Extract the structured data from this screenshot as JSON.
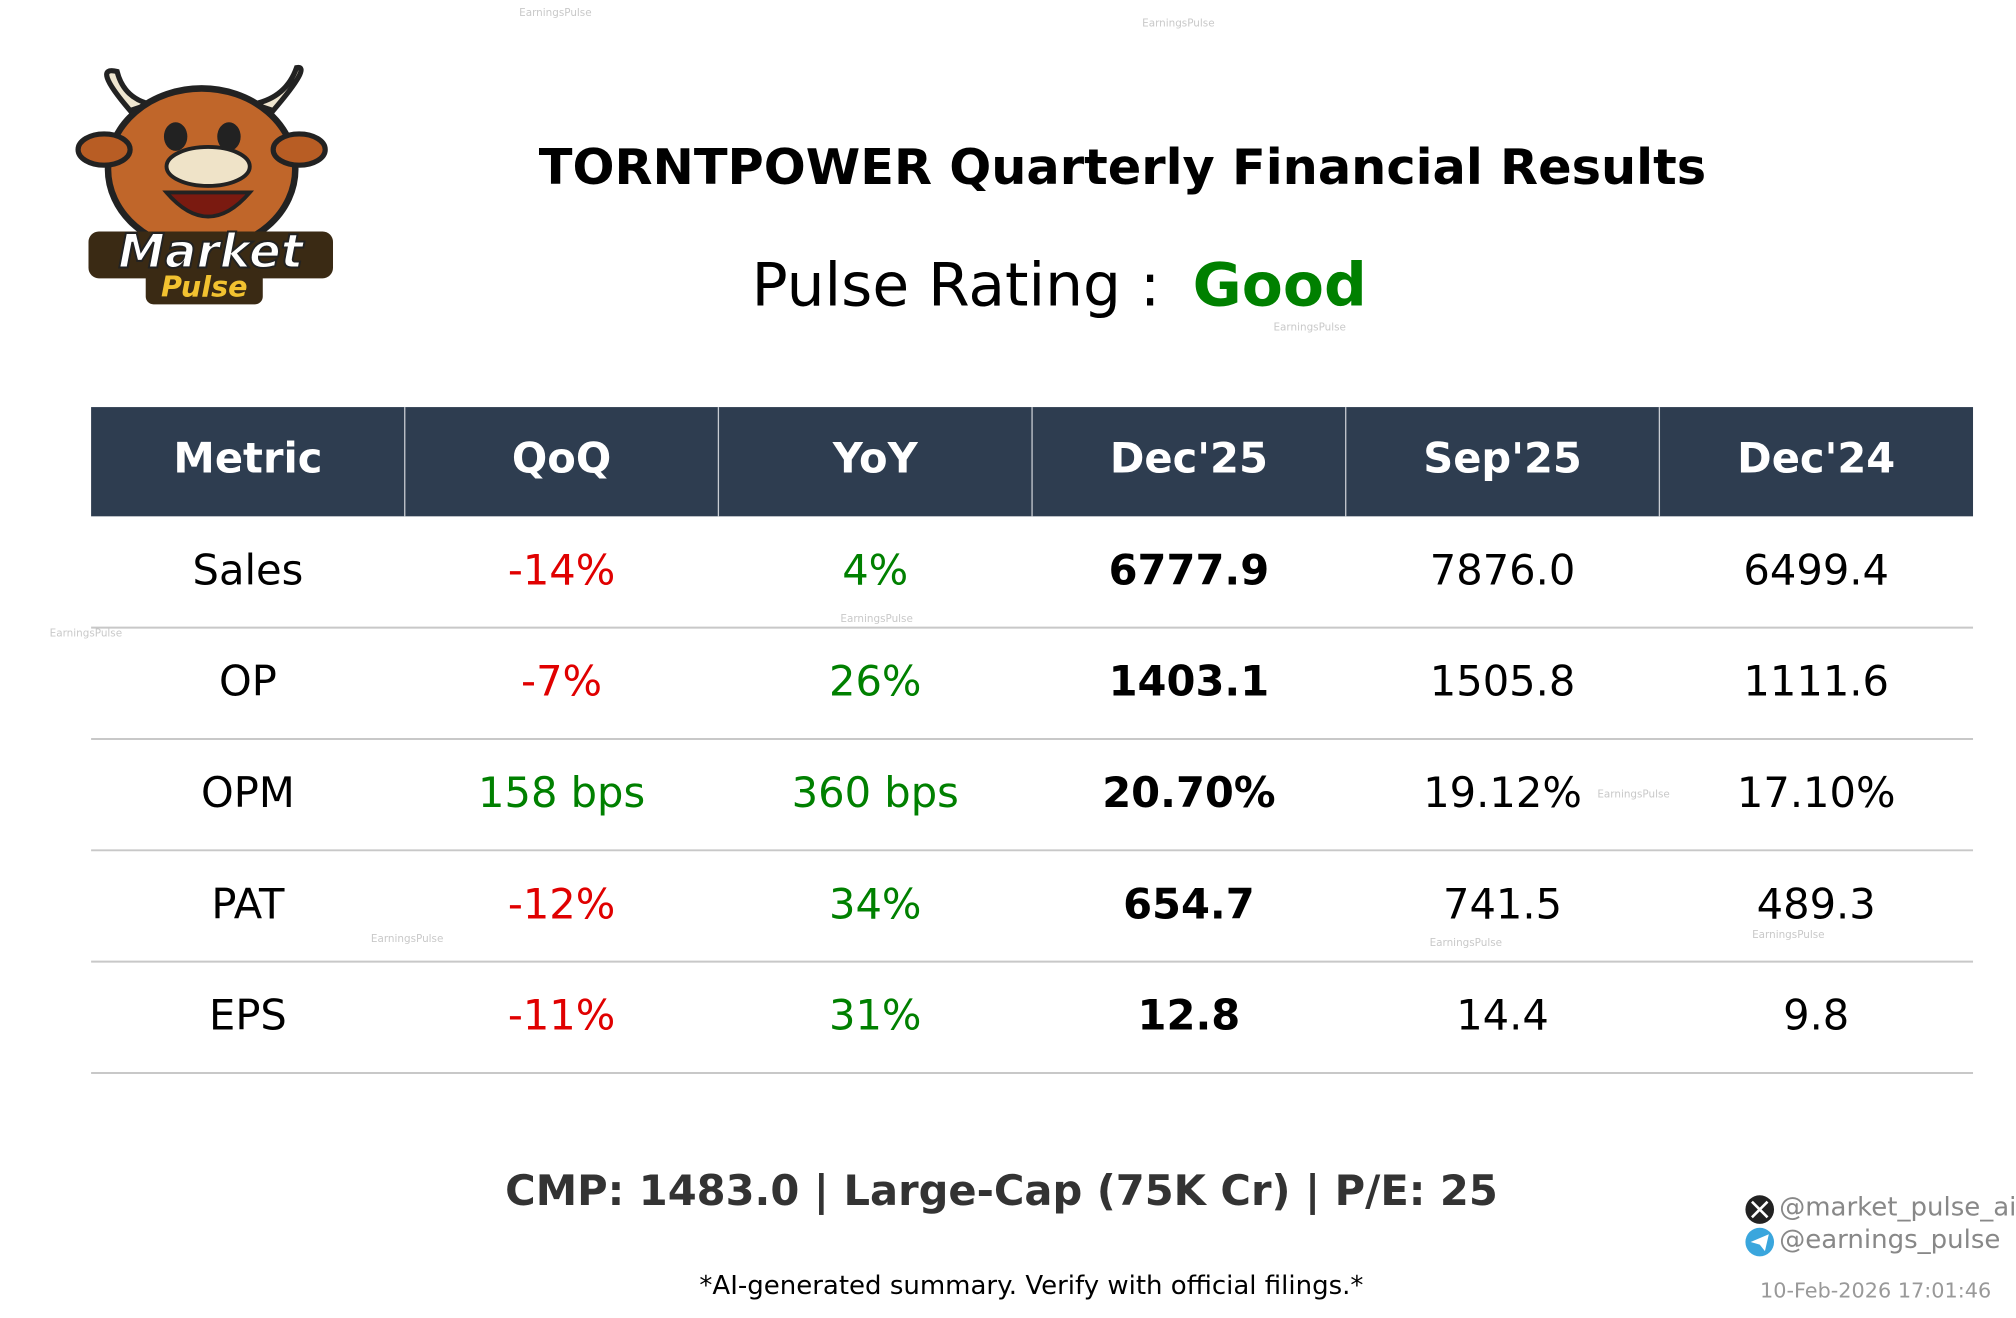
{
  "logo": {
    "line1": "Market",
    "line2": "Pulse"
  },
  "header": {
    "title": "TORNTPOWER Quarterly Financial Results",
    "rating_label": "Pulse Rating :",
    "rating": "Good"
  },
  "table": {
    "headers": [
      "Metric",
      "QoQ",
      "YoY",
      "Dec'25",
      "Sep'25",
      "Dec'24"
    ],
    "rows": [
      [
        "Sales",
        "-14%",
        "4%",
        "6777.9",
        "7876.0",
        "6499.4"
      ],
      [
        "OP",
        "-7%",
        "26%",
        "1403.1",
        "1505.8",
        "1111.6"
      ],
      [
        "OPM",
        "158 bps",
        "360 bps",
        "20.70%",
        "19.12%",
        "17.10%"
      ],
      [
        "PAT",
        "-12%",
        "34%",
        "654.7",
        "741.5",
        "489.3"
      ],
      [
        "EPS",
        "-11%",
        "31%",
        "12.8",
        "14.4",
        "9.8"
      ]
    ]
  },
  "footer": {
    "summary": "CMP: 1483.0 | Large-Cap (75K Cr) | P/E: 25",
    "disclaimer": "*AI-generated summary. Verify with official filings.*",
    "social": [
      "@market_pulse_ai",
      "@earnings_pulse"
    ],
    "timestamp": "10-Feb-2026 17:01:46"
  },
  "watermarks": [
    "EarningsPulse",
    "EarningsPulse",
    "EarningsPulse",
    "EarningsPulse",
    "EarningsPulse",
    "EarningsPulse",
    "EarningsPulse",
    "EarningsPulse",
    "EarningsPulse"
  ]
}
